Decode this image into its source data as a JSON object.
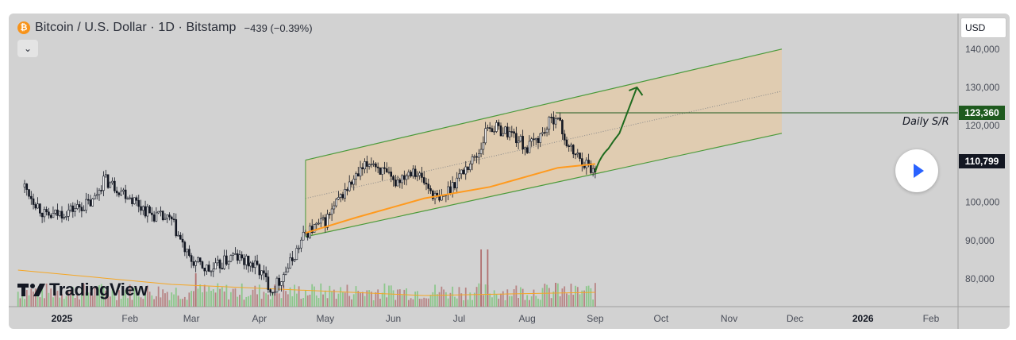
{
  "header": {
    "symbol_title": "Bitcoin / U.S. Dollar · 1D · Bitstamp",
    "change": "−439 (−0.39%)",
    "currency": "USD",
    "logo_text": "TradingView"
  },
  "annotations": {
    "resistance_value": "123,360",
    "resistance_label": "Daily S/R",
    "last_price": "110,799"
  },
  "colors": {
    "background": "#d2d2d2",
    "channel_fill": "#e8c9a0",
    "channel_line": "#4a9a3a",
    "ma_line": "#ff9a1e",
    "resistance_line": "#1e5a1e",
    "arrow": "#1e6a1e",
    "candle": "#131722",
    "volume_up": "#7cc47a",
    "volume_down": "#b07070"
  },
  "chart_data": {
    "type": "candlestick",
    "title": "Bitcoin / U.S. Dollar · 1D · Bitstamp",
    "y_axis": {
      "ticks": [
        80000,
        90000,
        100000,
        110000,
        120000,
        130000,
        140000
      ],
      "tick_labels": [
        "80,000",
        "90,000",
        "100,000",
        "110,000",
        "120,000",
        "130,000",
        "140,000"
      ]
    },
    "x_axis": {
      "tick_labels": [
        "2025",
        "Feb",
        "Mar",
        "Apr",
        "May",
        "Jun",
        "Jul",
        "Aug",
        "Sep",
        "Oct",
        "Nov",
        "Dec",
        "2026",
        "Feb"
      ]
    },
    "price_path": [
      [
        "2024-12-15",
        104000
      ],
      [
        "2024-12-25",
        96000
      ],
      [
        "2025-01-05",
        98000
      ],
      [
        "2025-01-15",
        100000
      ],
      [
        "2025-01-20",
        106000
      ],
      [
        "2025-01-31",
        102000
      ],
      [
        "2025-02-10",
        97000
      ],
      [
        "2025-02-20",
        95000
      ],
      [
        "2025-02-28",
        85000
      ],
      [
        "2025-03-10",
        82000
      ],
      [
        "2025-03-20",
        86000
      ],
      [
        "2025-03-31",
        83000
      ],
      [
        "2025-04-07",
        77000
      ],
      [
        "2025-04-15",
        84000
      ],
      [
        "2025-04-22",
        92000
      ],
      [
        "2025-05-01",
        95000
      ],
      [
        "2025-05-10",
        103000
      ],
      [
        "2025-05-22",
        111000
      ],
      [
        "2025-06-01",
        105000
      ],
      [
        "2025-06-10",
        109000
      ],
      [
        "2025-06-22",
        100000
      ],
      [
        "2025-07-01",
        107000
      ],
      [
        "2025-07-10",
        113000
      ],
      [
        "2025-07-14",
        120000
      ],
      [
        "2025-07-25",
        118000
      ],
      [
        "2025-08-01",
        114000
      ],
      [
        "2025-08-08",
        118000
      ],
      [
        "2025-08-14",
        123000
      ],
      [
        "2025-08-20",
        114000
      ],
      [
        "2025-08-28",
        110000
      ],
      [
        "2025-09-01",
        108000
      ]
    ],
    "channel": {
      "upper": [
        [
          "2025-04-22",
          111000
        ],
        [
          "2025-11-25",
          140000
        ]
      ],
      "lower": [
        [
          "2025-04-22",
          91000
        ],
        [
          "2025-11-25",
          118000
        ]
      ]
    },
    "moving_average": [
      [
        "2025-04-22",
        92000
      ],
      [
        "2025-05-15",
        96000
      ],
      [
        "2025-06-15",
        101000
      ],
      [
        "2025-07-15",
        104000
      ],
      [
        "2025-08-15",
        109000
      ],
      [
        "2025-09-01",
        110000
      ]
    ],
    "resistance": 123360,
    "last_price": 110799,
    "projection": [
      [
        "2025-09-01",
        108000
      ],
      [
        "2025-09-07",
        114000
      ],
      [
        "2025-09-12",
        118000
      ],
      [
        "2025-09-20",
        130000
      ]
    ]
  }
}
